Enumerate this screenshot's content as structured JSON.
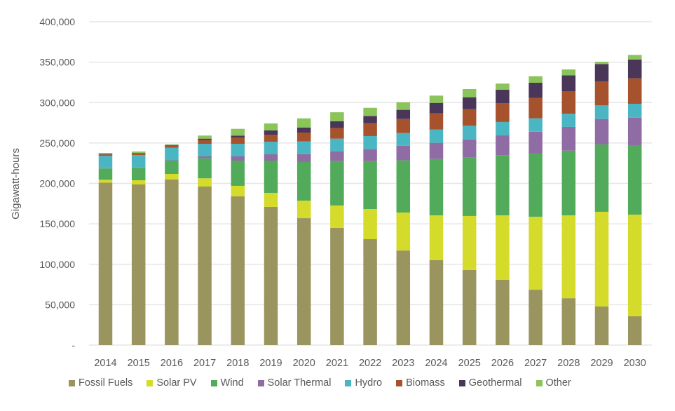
{
  "chart_data": {
    "type": "bar",
    "stacked": true,
    "title": "",
    "xlabel": "",
    "ylabel": "Gigawatt-hours",
    "ylim": [
      0,
      400000
    ],
    "yticks": [
      0,
      50000,
      100000,
      150000,
      200000,
      250000,
      300000,
      350000,
      400000
    ],
    "ytick_labels": [
      "-",
      "50,000",
      "100,000",
      "150,000",
      "200,000",
      "250,000",
      "300,000",
      "350,000",
      "400,000"
    ],
    "grid": true,
    "legend_position": "bottom",
    "categories": [
      "2014",
      "2015",
      "2016",
      "2017",
      "2018",
      "2019",
      "2020",
      "2021",
      "2022",
      "2023",
      "2024",
      "2025",
      "2026",
      "2027",
      "2028",
      "2029",
      "2030"
    ],
    "series": [
      {
        "name": "Fossil Fuels",
        "color": "#9a955e",
        "values": [
          201000,
          198700,
          205000,
          196100,
          184000,
          171000,
          157000,
          145000,
          131000,
          117000,
          105000,
          93000,
          80700,
          68500,
          58000,
          47700,
          35600
        ]
      },
      {
        "name": "Solar PV",
        "color": "#d4db2a",
        "values": [
          3500,
          5200,
          6700,
          10200,
          13000,
          17300,
          21700,
          27700,
          37300,
          47000,
          55500,
          66700,
          79800,
          90300,
          102500,
          117200,
          125800
        ]
      },
      {
        "name": "Wind",
        "color": "#52ab5a",
        "values": [
          14000,
          15400,
          16500,
          24800,
          31200,
          39900,
          47800,
          54900,
          59300,
          64500,
          69700,
          72200,
          74500,
          78100,
          80100,
          83300,
          85900
        ]
      },
      {
        "name": "Solar Thermal",
        "color": "#8f6ca3",
        "values": [
          300,
          300,
          400,
          2300,
          5200,
          7800,
          9800,
          12200,
          14800,
          18200,
          20000,
          22600,
          24400,
          27100,
          29300,
          31500,
          34100
        ]
      },
      {
        "name": "Hydro",
        "color": "#4bb6c3",
        "values": [
          15300,
          15500,
          15500,
          15600,
          15600,
          15600,
          15600,
          15600,
          16200,
          15600,
          16400,
          16800,
          16600,
          16500,
          16400,
          16800,
          17100
        ]
      },
      {
        "name": "Biomass",
        "color": "#a6522c",
        "values": [
          1700,
          1800,
          3200,
          4600,
          7800,
          8700,
          11000,
          13000,
          15900,
          17400,
          20000,
          20500,
          23300,
          25200,
          27800,
          29800,
          31500
        ]
      },
      {
        "name": "Geothermal",
        "color": "#4a3658",
        "values": [
          700,
          600,
          300,
          1800,
          2400,
          5200,
          6300,
          8400,
          8900,
          11300,
          13000,
          14800,
          16700,
          18800,
          19600,
          21400,
          23200
        ]
      },
      {
        "name": "Other",
        "color": "#8bc45a",
        "values": [
          1100,
          2000,
          600,
          3800,
          8300,
          8700,
          11300,
          11200,
          10100,
          9500,
          9000,
          10100,
          7500,
          8100,
          7300,
          2800,
          5800
        ]
      }
    ]
  }
}
